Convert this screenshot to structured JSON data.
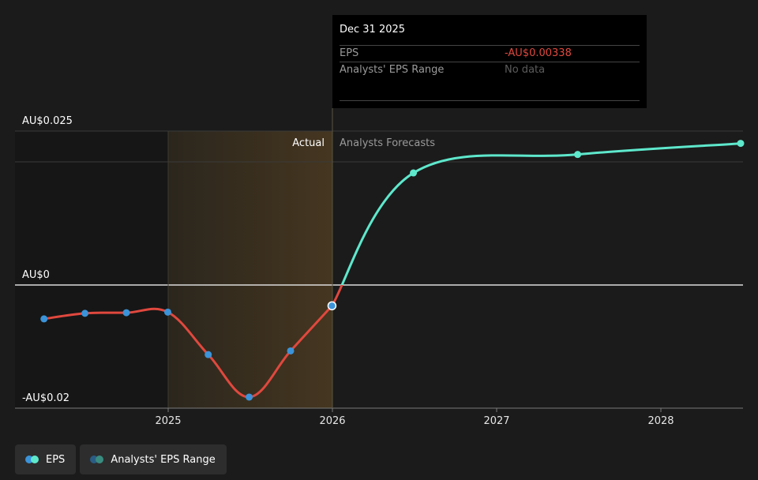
{
  "colors": {
    "background": "#1b1b1b",
    "actual_line": "#e0483e",
    "forecast_line": "#5ee8cc",
    "actual_marker": "#3b93d9",
    "highlight_band": "#3a3222",
    "negative_value": "#e0483e",
    "muted_text": "#9a9a9a"
  },
  "tooltip": {
    "date": "Dec 31 2025",
    "rows": [
      {
        "label": "EPS",
        "value": "-AU$0.00338"
      },
      {
        "label": "Analysts' EPS Range",
        "value": "No data"
      }
    ]
  },
  "region_labels": {
    "actual": "Actual",
    "forecast": "Analysts Forecasts"
  },
  "legend": [
    {
      "label": "EPS",
      "icon": "dual-dot-icon",
      "colors": [
        "#3b93d9",
        "#5ee8cc"
      ]
    },
    {
      "label": "Analysts' EPS Range",
      "icon": "dual-dot-icon",
      "colors": [
        "#2a5d85",
        "#3a8c80"
      ]
    }
  ],
  "chart_data": {
    "type": "line",
    "title": "",
    "xlabel": "",
    "ylabel": "",
    "y_tick_labels": [
      "AU$0.025",
      "AU$0",
      "-AU$0.02"
    ],
    "y_tick_values": [
      0.025,
      0,
      -0.02
    ],
    "x_tick_labels": [
      "2025",
      "2026",
      "2027",
      "2028"
    ],
    "ylim": [
      -0.02,
      0.025
    ],
    "xlim": [
      "2024-03-31",
      "2028-06-30"
    ],
    "highlight_range": [
      "2025-01-01",
      "2026-01-01"
    ],
    "grid": "horizontal",
    "legend_position": "bottom-left",
    "series": [
      {
        "name": "EPS",
        "segment": "actual",
        "x": [
          "2024-03-31",
          "2024-06-30",
          "2024-09-30",
          "2024-12-31",
          "2025-03-31",
          "2025-06-30",
          "2025-09-30",
          "2025-12-31"
        ],
        "y": [
          -0.0055,
          -0.0046,
          -0.0045,
          -0.0044,
          -0.0113,
          -0.0182,
          -0.0107,
          -0.00338
        ]
      },
      {
        "name": "EPS",
        "segment": "forecast",
        "x": [
          "2025-12-31",
          "2026-06-30",
          "2027-06-30",
          "2028-06-30"
        ],
        "y": [
          -0.00338,
          0.0182,
          0.0212,
          0.023
        ]
      }
    ]
  }
}
